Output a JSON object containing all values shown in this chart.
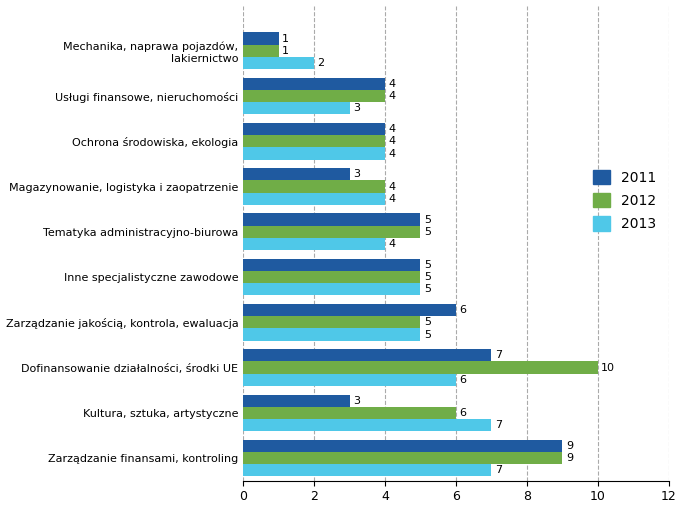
{
  "categories": [
    "Zarządzanie finansami, kontroling",
    "Kultura, sztuka, artystyczne",
    "Dofinansowanie działalności, środki UE",
    "Zarządzanie jakością, kontrola, ewaluacja",
    "Inne specjalistyczne zawodowe",
    "Tematyka administracyjno-biurowa",
    "Magazynowanie, logistyka i zaopatrzenie",
    "Ochrona środowiska, ekologia",
    "Usługi finansowe, nieruchomości",
    "Mechanika, naprawa pojazdów,\nlakiernictwo"
  ],
  "values_2011": [
    9,
    3,
    7,
    6,
    5,
    5,
    3,
    4,
    4,
    1
  ],
  "values_2012": [
    9,
    6,
    10,
    5,
    5,
    5,
    4,
    4,
    4,
    1
  ],
  "values_2013": [
    7,
    7,
    6,
    5,
    5,
    4,
    4,
    4,
    3,
    2
  ],
  "color_2011": "#1F5AA0",
  "color_2012": "#70AD47",
  "color_2013": "#4FC8E8",
  "xlim": [
    0,
    12
  ],
  "xticks": [
    0,
    2,
    4,
    6,
    8,
    10,
    12
  ],
  "legend_labels": [
    "2011",
    "2012",
    "2013"
  ],
  "bar_height": 0.27,
  "grid_color": "#AAAAAA",
  "background_color": "#FFFFFF",
  "label_fontsize": 8,
  "ytick_fontsize": 8,
  "xtick_fontsize": 9
}
